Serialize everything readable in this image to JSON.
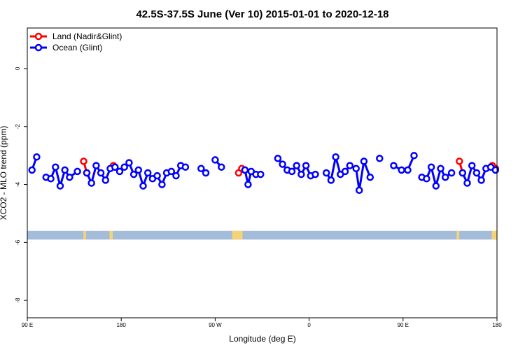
{
  "chart_data": {
    "type": "line",
    "title": "42.5S-37.5S June (Ver 10)   2015-01-01 to 2020-12-18",
    "xlabel": "Longitude (deg E)",
    "ylabel": "XCO2 - MLO trend (ppm)",
    "xlim": [
      90,
      450
    ],
    "ylim": [
      -8.6,
      1.4
    ],
    "y_ticks": [
      0,
      -2,
      -4,
      -6,
      -8
    ],
    "y_tick_labels": [
      "0",
      "-2",
      "-4",
      "-6",
      "-8"
    ],
    "x_ticks": [
      90,
      162,
      234,
      306,
      378,
      450
    ],
    "x_tick_labels": [
      "90 E",
      "180",
      "90 W",
      "0",
      "90 E",
      "180"
    ],
    "legend": {
      "position": "top-left",
      "entries": [
        {
          "label": "Land (Nadir&Glint)",
          "color": "#ff0000"
        },
        {
          "label": "Ocean (Glint)",
          "color": "#0000ff"
        }
      ]
    },
    "series": [
      {
        "name": "Land (Nadir&Glint)",
        "color": "#ff0000",
        "segments": [
          [
            [
              133.2,
              -3.2
            ],
            [
              135.6,
              -3.6
            ]
          ],
          [
            [
              156.0,
              -3.35
            ],
            [
              157.2,
              -3.4
            ]
          ],
          [
            [
              252.0,
              -3.6
            ],
            [
              254.4,
              -3.45
            ],
            [
              256.8,
              -3.5
            ]
          ],
          [
            [
              421.2,
              -3.2
            ],
            [
              423.6,
              -3.6
            ]
          ],
          [
            [
              446.4,
              -3.35
            ],
            [
              448.8,
              -3.45
            ]
          ]
        ]
      },
      {
        "name": "Ocean (Glint)",
        "color": "#0000ff",
        "segments": [
          [
            [
              93.6,
              -3.5
            ],
            [
              97.2,
              -3.05
            ]
          ],
          [
            [
              104.4,
              -3.75
            ],
            [
              108.0,
              -3.8
            ],
            [
              111.6,
              -3.4
            ],
            [
              115.2,
              -4.05
            ],
            [
              118.8,
              -3.5
            ],
            [
              122.4,
              -3.75
            ],
            [
              128.4,
              -3.55
            ]
          ],
          [
            [
              135.6,
              -3.6
            ],
            [
              139.2,
              -3.95
            ],
            [
              142.8,
              -3.35
            ],
            [
              146.4,
              -3.6
            ],
            [
              150.0,
              -3.85
            ],
            [
              153.6,
              -3.45
            ],
            [
              157.2,
              -3.4
            ],
            [
              160.8,
              -3.55
            ],
            [
              164.4,
              -3.4
            ],
            [
              168.0,
              -3.25
            ],
            [
              171.6,
              -3.65
            ],
            [
              175.2,
              -3.5
            ],
            [
              178.8,
              -4.05
            ],
            [
              182.4,
              -3.6
            ],
            [
              186.0,
              -3.8
            ],
            [
              189.6,
              -3.7
            ],
            [
              193.2,
              -4.0
            ],
            [
              196.8,
              -3.6
            ],
            [
              200.4,
              -3.55
            ],
            [
              204.0,
              -3.7
            ],
            [
              207.6,
              -3.35
            ],
            [
              211.2,
              -3.4
            ]
          ],
          [
            [
              223.2,
              -3.45
            ],
            [
              226.8,
              -3.6
            ]
          ],
          [
            [
              234.0,
              -3.15
            ],
            [
              238.8,
              -3.4
            ]
          ],
          [
            [
              256.8,
              -3.5
            ],
            [
              259.2,
              -4.0
            ],
            [
              261.6,
              -3.55
            ],
            [
              265.2,
              -3.65
            ],
            [
              268.8,
              -3.65
            ]
          ],
          [
            [
              282.0,
              -3.1
            ],
            [
              285.6,
              -3.3
            ],
            [
              289.2,
              -3.5
            ],
            [
              292.8,
              -3.55
            ],
            [
              296.4,
              -3.35
            ],
            [
              300.0,
              -3.65
            ],
            [
              303.6,
              -3.35
            ],
            [
              307.2,
              -3.7
            ],
            [
              310.8,
              -3.65
            ]
          ],
          [
            [
              319.2,
              -3.6
            ],
            [
              322.8,
              -3.85
            ],
            [
              326.4,
              -3.05
            ],
            [
              330.0,
              -3.65
            ],
            [
              333.6,
              -3.55
            ],
            [
              337.2,
              -3.35
            ],
            [
              342.0,
              -3.45
            ],
            [
              344.4,
              -4.2
            ],
            [
              348.0,
              -3.2
            ],
            [
              352.8,
              -3.75
            ]
          ],
          [
            [
              360.0,
              -3.1
            ]
          ],
          [
            [
              370.8,
              -3.35
            ],
            [
              376.8,
              -3.5
            ],
            [
              381.6,
              -3.5
            ],
            [
              386.4,
              -3.0
            ]
          ],
          [
            [
              392.4,
              -3.75
            ],
            [
              396.0,
              -3.8
            ],
            [
              399.6,
              -3.4
            ],
            [
              403.2,
              -4.05
            ],
            [
              406.8,
              -3.45
            ],
            [
              410.4,
              -3.75
            ],
            [
              415.2,
              -3.6
            ]
          ],
          [
            [
              423.6,
              -3.6
            ],
            [
              427.2,
              -3.95
            ],
            [
              430.8,
              -3.35
            ],
            [
              434.4,
              -3.6
            ],
            [
              438.0,
              -3.85
            ],
            [
              441.6,
              -3.45
            ],
            [
              445.2,
              -3.4
            ],
            [
              448.8,
              -3.5
            ]
          ]
        ]
      }
    ],
    "land_strip": {
      "y_range": [
        -5.9,
        -5.6
      ],
      "ocean_color": "#a3bcd9",
      "land_color": "#f5d376",
      "land_spans": [
        [
          133.0,
          135.0
        ],
        [
          153.0,
          155.5
        ],
        [
          247.0,
          255.0
        ],
        [
          419.0,
          421.0
        ],
        [
          446.0,
          450.0
        ]
      ]
    }
  }
}
